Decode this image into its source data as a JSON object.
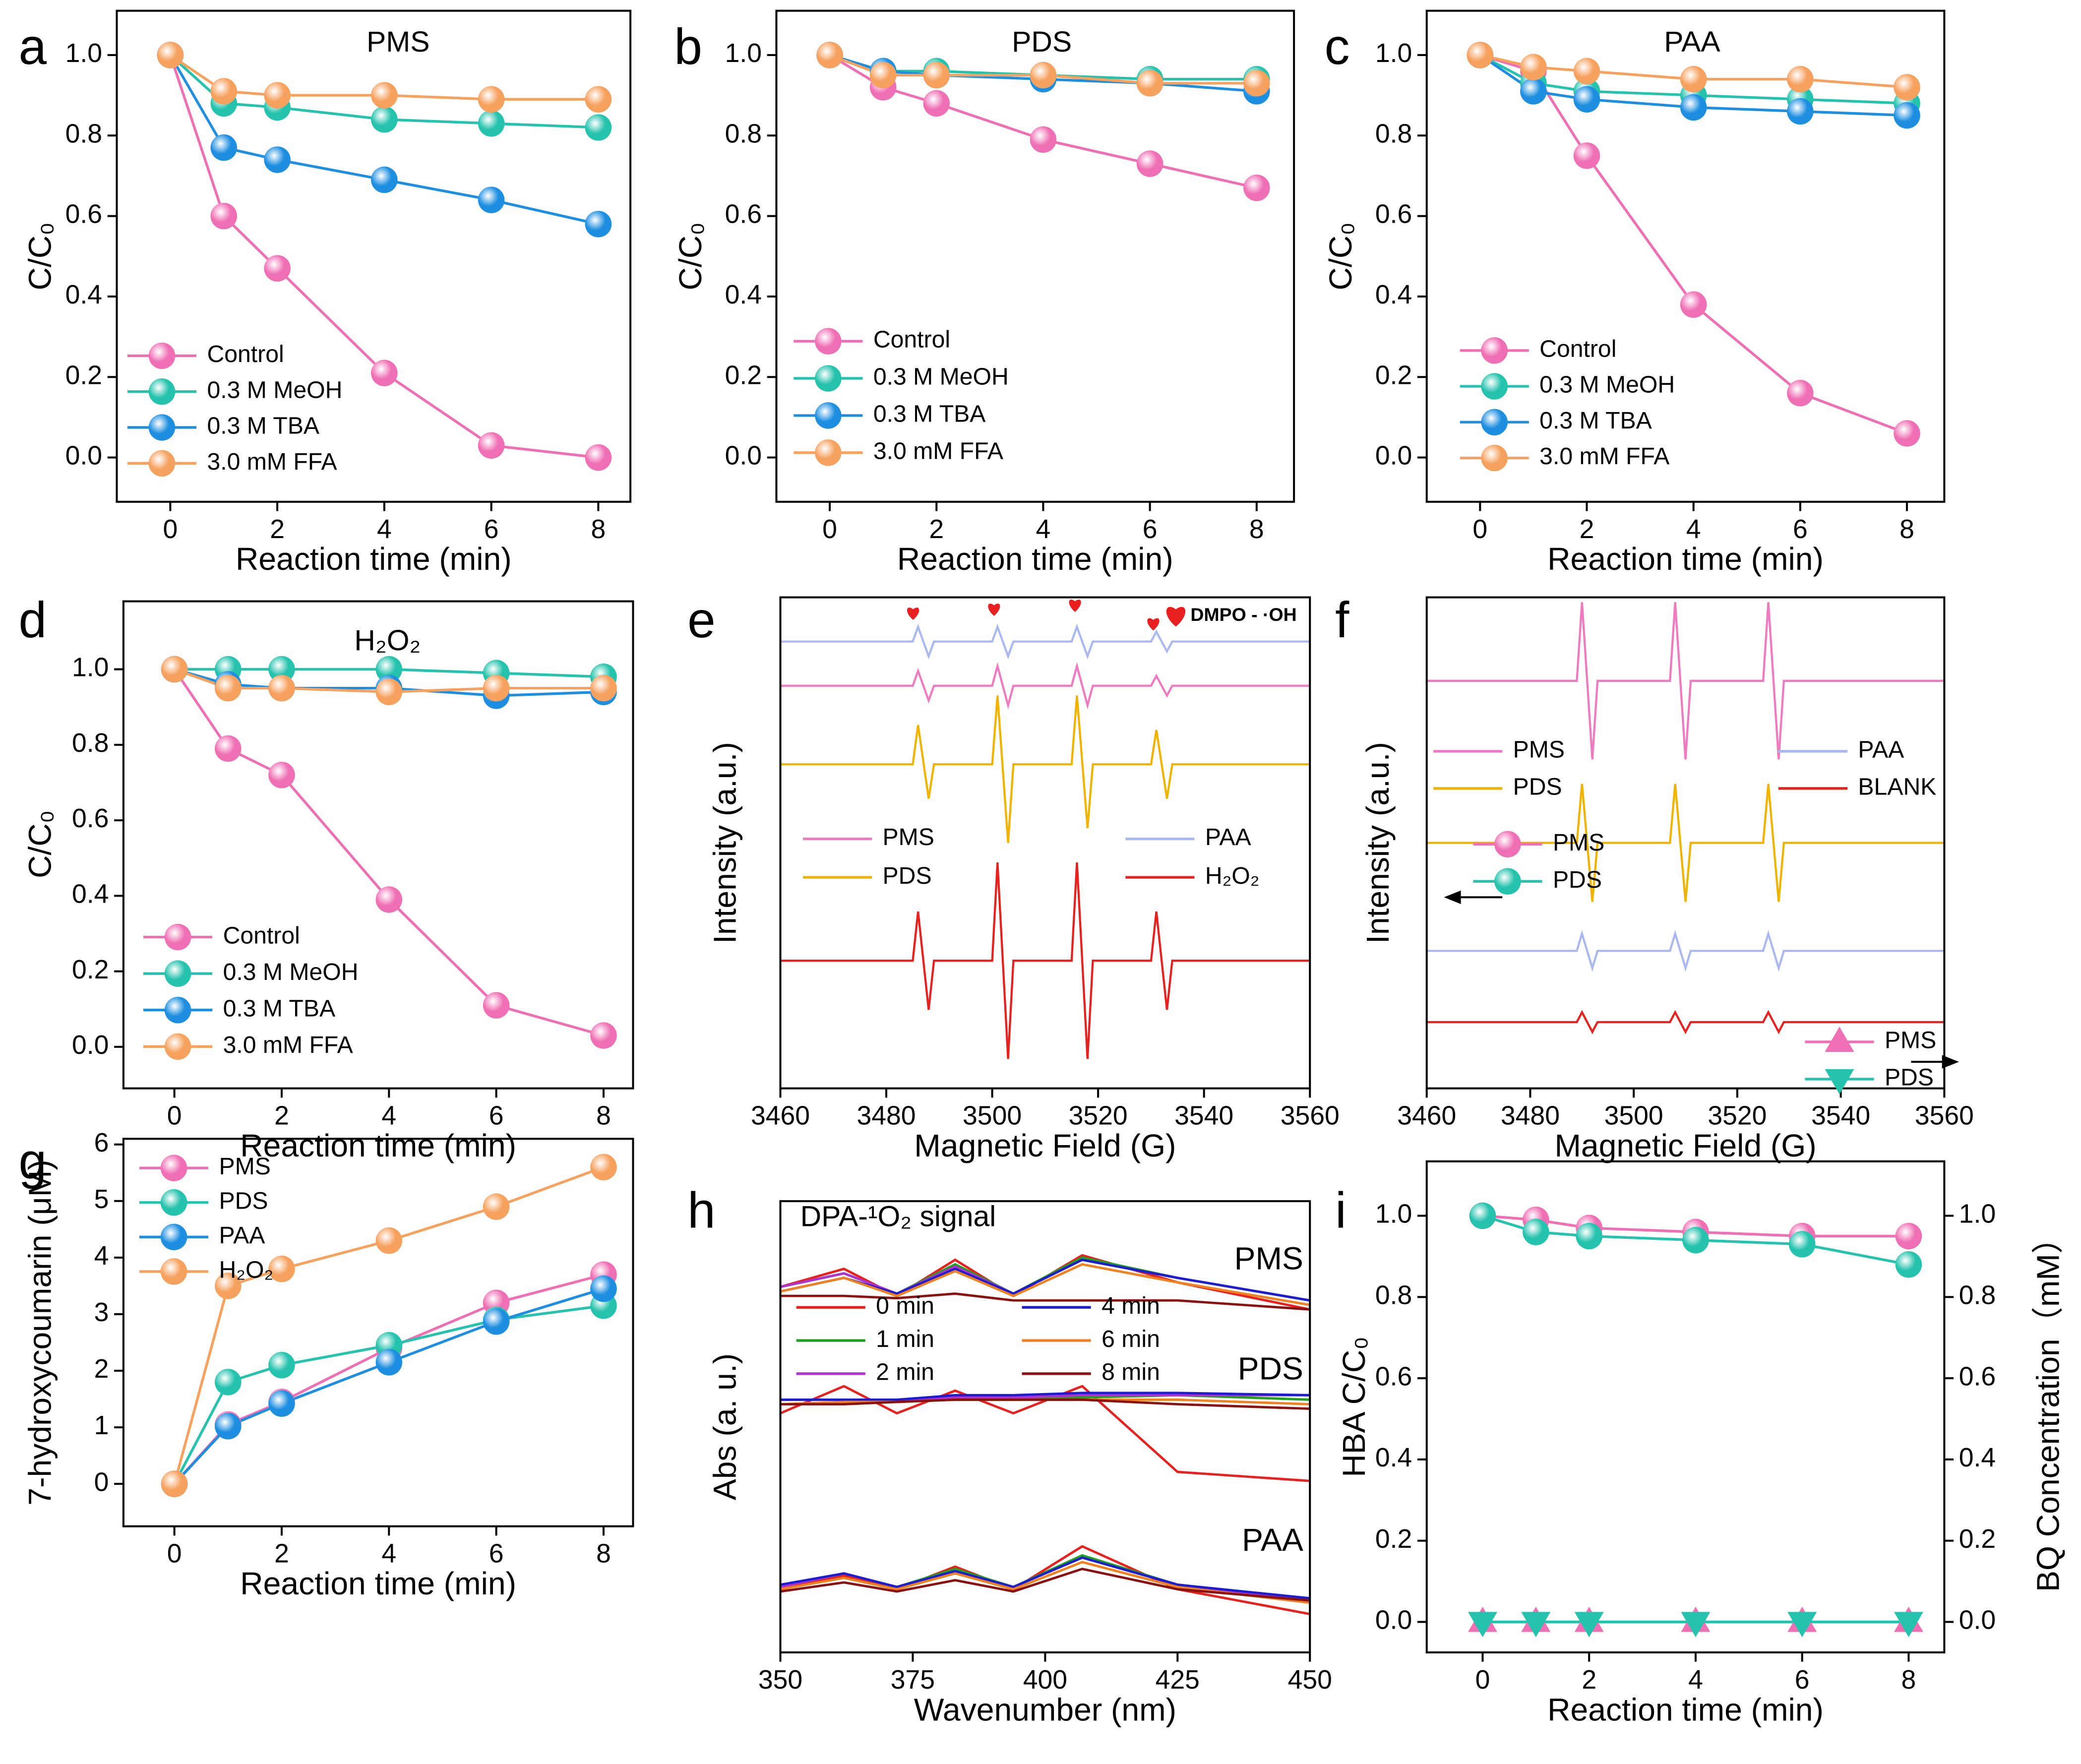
{
  "chart_data": [
    {
      "panel": "a",
      "type": "line",
      "title": "PMS",
      "x": [
        0,
        1,
        2,
        4,
        6,
        8
      ],
      "xlim": [
        -1,
        8.6
      ],
      "xticks": [
        0,
        2,
        4,
        6,
        8
      ],
      "ylim": [
        -0.11,
        1.11
      ],
      "yticks": [
        {
          "value": 0,
          "label": "0.0"
        },
        {
          "value": 0.2,
          "label": "0.2"
        },
        {
          "value": 0.4,
          "label": "0.4"
        },
        {
          "value": 0.6,
          "label": "0.6"
        },
        {
          "value": 0.8,
          "label": "0.8"
        },
        {
          "value": 1,
          "label": "1.0"
        }
      ],
      "xlabel": "Reaction time (min)",
      "ylabel": "C/C₀",
      "legend": "lower left",
      "series": [
        {
          "name": "Control",
          "color": "#ef6fb5",
          "values": [
            1,
            0.6,
            0.47,
            0.21,
            0.03,
            0.0
          ]
        },
        {
          "name": "0.3 M MeOH",
          "color": "#25c2ad",
          "values": [
            1,
            0.88,
            0.87,
            0.84,
            0.83,
            0.82
          ]
        },
        {
          "name": "0.3 M TBA",
          "color": "#1e8fe0",
          "values": [
            1,
            0.77,
            0.74,
            0.69,
            0.64,
            0.58
          ]
        },
        {
          "name": "3.0 mM FFA",
          "color": "#f6a15e",
          "values": [
            1,
            0.91,
            0.9,
            0.9,
            0.89,
            0.89
          ]
        }
      ]
    },
    {
      "panel": "b",
      "type": "line",
      "title": "PDS",
      "x": [
        0,
        1,
        2,
        4,
        6,
        8
      ],
      "xlim": [
        -1,
        8.7
      ],
      "xticks": [
        0,
        2,
        4,
        6,
        8
      ],
      "ylim": [
        -0.11,
        1.11
      ],
      "yticks": [
        {
          "value": 0,
          "label": "0.0"
        },
        {
          "value": 0.2,
          "label": "0.2"
        },
        {
          "value": 0.4,
          "label": "0.4"
        },
        {
          "value": 0.6,
          "label": "0.6"
        },
        {
          "value": 0.8,
          "label": "0.8"
        },
        {
          "value": 1,
          "label": "1.0"
        }
      ],
      "xlabel": "Reaction time (min)",
      "ylabel": "C/C₀",
      "legend": "lower left",
      "series": [
        {
          "name": "Control",
          "color": "#ef6fb5",
          "values": [
            1,
            0.92,
            0.88,
            0.79,
            0.73,
            0.67
          ]
        },
        {
          "name": "0.3 M MeOH",
          "color": "#25c2ad",
          "values": [
            1,
            0.96,
            0.96,
            0.95,
            0.94,
            0.94
          ]
        },
        {
          "name": "0.3 M TBA",
          "color": "#1e8fe0",
          "values": [
            1,
            0.96,
            0.95,
            0.94,
            0.93,
            0.91
          ]
        },
        {
          "name": "3.0 mM FFA",
          "color": "#f6a15e",
          "values": [
            1,
            0.95,
            0.95,
            0.95,
            0.93,
            0.93
          ]
        }
      ]
    },
    {
      "panel": "c",
      "type": "line",
      "title": "PAA",
      "x": [
        0,
        1,
        2,
        4,
        6,
        8
      ],
      "xlim": [
        -1,
        8.7
      ],
      "xticks": [
        0,
        2,
        4,
        6,
        8
      ],
      "ylim": [
        -0.11,
        1.11
      ],
      "yticks": [
        {
          "value": 0,
          "label": "0.0"
        },
        {
          "value": 0.2,
          "label": "0.2"
        },
        {
          "value": 0.4,
          "label": "0.4"
        },
        {
          "value": 0.6,
          "label": "0.6"
        },
        {
          "value": 0.8,
          "label": "0.8"
        },
        {
          "value": 1,
          "label": "1.0"
        }
      ],
      "xlabel": "Reaction time (min)",
      "ylabel": "C/C₀",
      "legend": "lower left",
      "series": [
        {
          "name": "Control",
          "color": "#ef6fb5",
          "values": [
            1,
            0.96,
            0.75,
            0.38,
            0.16,
            0.06
          ]
        },
        {
          "name": "0.3 M MeOH",
          "color": "#25c2ad",
          "values": [
            1,
            0.93,
            0.91,
            0.9,
            0.89,
            0.88
          ]
        },
        {
          "name": "0.3 M TBA",
          "color": "#1e8fe0",
          "values": [
            1,
            0.91,
            0.89,
            0.87,
            0.86,
            0.85
          ]
        },
        {
          "name": "3.0 mM FFA",
          "color": "#f6a15e",
          "values": [
            1,
            0.97,
            0.96,
            0.94,
            0.94,
            0.92
          ]
        }
      ]
    },
    {
      "panel": "d",
      "type": "line",
      "title": "H₂O₂",
      "x": [
        0,
        1,
        2,
        4,
        6,
        8
      ],
      "xlim": [
        -0.95,
        8.55
      ],
      "xticks": [
        0,
        2,
        4,
        6,
        8
      ],
      "ylim": [
        -0.11,
        1.18
      ],
      "yticks": [
        {
          "value": 0,
          "label": "0.0"
        },
        {
          "value": 0.2,
          "label": "0.2"
        },
        {
          "value": 0.4,
          "label": "0.4"
        },
        {
          "value": 0.6,
          "label": "0.6"
        },
        {
          "value": 0.8,
          "label": "0.8"
        },
        {
          "value": 1,
          "label": "1.0"
        }
      ],
      "xlabel": "Reaction time (min)",
      "ylabel": "C/C₀",
      "legend": "lower left",
      "series": [
        {
          "name": "Control",
          "color": "#ef6fb5",
          "values": [
            1,
            0.79,
            0.72,
            0.39,
            0.11,
            0.03
          ]
        },
        {
          "name": "0.3 M MeOH",
          "color": "#25c2ad",
          "values": [
            1,
            1.0,
            1.0,
            1.0,
            0.99,
            0.98
          ]
        },
        {
          "name": "0.3 M TBA",
          "color": "#1e8fe0",
          "values": [
            1,
            0.96,
            0.95,
            0.95,
            0.93,
            0.94
          ]
        },
        {
          "name": "3.0 mM FFA",
          "color": "#f6a15e",
          "values": [
            1,
            0.95,
            0.95,
            0.94,
            0.95,
            0.95
          ]
        }
      ]
    },
    {
      "panel": "e",
      "type": "spectrum",
      "annotation": "DMPO - ·OH",
      "x": [
        3460,
        3485,
        3486,
        3488,
        3489,
        3500,
        3501,
        3503,
        3504,
        3515,
        3516,
        3518,
        3519,
        3530,
        3531,
        3533,
        3534,
        3560
      ],
      "xlim": [
        3460,
        3560
      ],
      "xticks": [
        3460,
        3480,
        3500,
        3520,
        3540,
        3560
      ],
      "ylim": [
        0,
        10
      ],
      "xlabel": "Magnetic Field (G)",
      "ylabel": "Intensity (a.u.)",
      "legend": "center",
      "series": [
        {
          "name": "PMS",
          "color": "#f07ac0",
          "values": [
            8.2,
            8.2,
            8.5,
            7.9,
            8.2,
            8.2,
            8.6,
            7.8,
            8.2,
            8.2,
            8.6,
            7.8,
            8.2,
            8.2,
            8.4,
            8.0,
            8.2,
            8.2
          ]
        },
        {
          "name": "PDS",
          "color": "#f0b400",
          "values": [
            6.6,
            6.6,
            7.4,
            5.9,
            6.6,
            6.6,
            8.0,
            5.0,
            6.6,
            6.6,
            8.0,
            5.3,
            6.6,
            6.6,
            7.3,
            5.9,
            6.6,
            6.6
          ]
        },
        {
          "name": "PAA",
          "color": "#a9b8f0",
          "values": [
            9.1,
            9.1,
            9.4,
            8.8,
            9.1,
            9.1,
            9.4,
            8.8,
            9.1,
            9.1,
            9.4,
            8.8,
            9.1,
            9.1,
            9.3,
            8.9,
            9.1,
            9.1
          ]
        },
        {
          "name": "H₂O₂",
          "color": "#e8201e",
          "values": [
            2.6,
            2.6,
            3.6,
            1.6,
            2.6,
            2.6,
            4.6,
            0.6,
            2.6,
            2.6,
            4.6,
            0.6,
            2.6,
            2.6,
            3.6,
            1.6,
            2.6,
            2.6
          ]
        }
      ]
    },
    {
      "panel": "f",
      "type": "spectrum",
      "x": [
        3460,
        3489,
        3490,
        3492,
        3493,
        3507,
        3508,
        3510,
        3511,
        3525,
        3526,
        3528,
        3529,
        3560
      ],
      "xlim": [
        3460,
        3560
      ],
      "xticks": [
        3460,
        3480,
        3500,
        3520,
        3540,
        3560
      ],
      "ylim": [
        0,
        10
      ],
      "xlabel": "Magnetic Field (G)",
      "ylabel": "Intensity (a.u.)",
      "legend": "center",
      "series": [
        {
          "name": "PMS",
          "color": "#f07ac0",
          "values": [
            8.3,
            8.3,
            9.9,
            6.7,
            8.3,
            8.3,
            9.9,
            6.7,
            8.3,
            8.3,
            9.9,
            6.7,
            8.3,
            8.3
          ]
        },
        {
          "name": "PDS",
          "color": "#f0b400",
          "values": [
            5.0,
            5.0,
            6.2,
            3.8,
            5.0,
            5.0,
            6.2,
            3.8,
            5.0,
            5.0,
            6.2,
            3.8,
            5.0,
            5.0
          ]
        },
        {
          "name": "PAA",
          "color": "#a9b8f0",
          "values": [
            2.8,
            2.8,
            3.15,
            2.45,
            2.8,
            2.8,
            3.15,
            2.45,
            2.8,
            2.8,
            3.15,
            2.45,
            2.8,
            2.8
          ]
        },
        {
          "name": "BLANK",
          "color": "#e8201e",
          "values": [
            1.35,
            1.35,
            1.55,
            1.15,
            1.35,
            1.35,
            1.55,
            1.15,
            1.35,
            1.35,
            1.55,
            1.15,
            1.35,
            1.35
          ]
        }
      ]
    },
    {
      "panel": "g",
      "type": "line",
      "x": [
        0,
        1,
        2,
        4,
        6,
        8
      ],
      "xlim": [
        -0.95,
        8.55
      ],
      "xticks": [
        0,
        2,
        4,
        6,
        8
      ],
      "ylim": [
        -0.75,
        6.1
      ],
      "yticks": [
        0,
        1,
        2,
        3,
        4,
        5,
        6
      ],
      "xlabel": "Reaction time (min)",
      "ylabel": "7-hydroxycoumarin (μM)",
      "legend": "upper left",
      "series": [
        {
          "name": "PMS",
          "color": "#ef6fb5",
          "values": [
            0,
            1.05,
            1.45,
            2.4,
            3.2,
            3.7
          ]
        },
        {
          "name": "PDS",
          "color": "#25c2ad",
          "values": [
            0,
            1.8,
            2.1,
            2.45,
            2.9,
            3.15
          ]
        },
        {
          "name": "PAA",
          "color": "#1e8fe0",
          "values": [
            0,
            1.02,
            1.42,
            2.15,
            2.87,
            3.45
          ]
        },
        {
          "name": "H₂O₂",
          "color": "#f6a15e",
          "values": [
            0,
            3.5,
            3.8,
            4.3,
            4.9,
            5.6
          ]
        }
      ]
    },
    {
      "panel": "h",
      "type": "spectrum",
      "title": "DPA-¹O₂ signal",
      "groups": [
        "PMS",
        "PDS",
        "PAA"
      ],
      "x": [
        350,
        362,
        372,
        383,
        394,
        407,
        425,
        450
      ],
      "xlim": [
        350,
        450
      ],
      "xticks": [
        350,
        375,
        400,
        425,
        450
      ],
      "ylim": [
        0,
        10
      ],
      "xlabel": "Wavenumber (nm)",
      "ylabel": "Abs (a. u.)",
      "legend": "center",
      "series": [
        {
          "name": "0 min",
          "color": "#e8201e",
          "values": [
            [
              8.1,
              8.5,
              7.9,
              8.7,
              7.9,
              8.8,
              8.2,
              7.6
            ],
            [
              5.3,
              5.9,
              5.3,
              5.8,
              5.3,
              5.9,
              4.0,
              3.8
            ],
            [
              1.4,
              1.7,
              1.4,
              1.9,
              1.4,
              2.35,
              1.4,
              0.85
            ]
          ]
        },
        {
          "name": "1 min",
          "color": "#20a020",
          "values": [
            [
              8.1,
              8.4,
              7.95,
              8.6,
              7.95,
              8.75,
              8.3,
              7.8
            ],
            [
              5.5,
              5.5,
              5.55,
              5.6,
              5.6,
              5.65,
              5.7,
              5.6
            ],
            [
              1.45,
              1.75,
              1.45,
              1.85,
              1.45,
              2.15,
              1.5,
              1.15
            ]
          ]
        },
        {
          "name": "2 min",
          "color": "#b030d0",
          "values": [
            [
              8.1,
              8.4,
              7.95,
              8.55,
              7.95,
              8.7,
              8.3,
              7.8
            ],
            [
              5.6,
              5.6,
              5.6,
              5.65,
              5.65,
              5.7,
              5.7,
              5.7
            ],
            [
              1.45,
              1.75,
              1.45,
              1.8,
              1.45,
              2.1,
              1.5,
              1.15
            ]
          ]
        },
        {
          "name": "4 min",
          "color": "#1c1cd0",
          "values": [
            [
              8.0,
              8.3,
              7.95,
              8.5,
              7.95,
              8.7,
              8.3,
              7.8
            ],
            [
              5.6,
              5.6,
              5.6,
              5.7,
              5.7,
              5.75,
              5.75,
              5.7
            ],
            [
              1.5,
              1.75,
              1.45,
              1.8,
              1.45,
              2.1,
              1.5,
              1.2
            ]
          ]
        },
        {
          "name": "6 min",
          "color": "#f08020",
          "values": [
            [
              8.0,
              8.3,
              7.9,
              8.45,
              7.9,
              8.6,
              8.2,
              7.7
            ],
            [
              5.5,
              5.55,
              5.55,
              5.6,
              5.6,
              5.6,
              5.6,
              5.5
            ],
            [
              1.4,
              1.65,
              1.4,
              1.75,
              1.4,
              2.0,
              1.45,
              1.1
            ]
          ]
        },
        {
          "name": "8 min",
          "color": "#8b1010",
          "values": [
            [
              7.9,
              7.9,
              7.85,
              7.95,
              7.8,
              7.8,
              7.8,
              7.6
            ],
            [
              5.5,
              5.5,
              5.55,
              5.6,
              5.6,
              5.6,
              5.5,
              5.4
            ],
            [
              1.35,
              1.55,
              1.35,
              1.6,
              1.35,
              1.85,
              1.4,
              1.15
            ]
          ]
        }
      ]
    },
    {
      "panel": "i",
      "type": "line",
      "x": [
        0,
        1,
        2,
        4,
        6,
        8
      ],
      "xlim": [
        -1.05,
        8.67
      ],
      "xticks": [
        0,
        2,
        4,
        6,
        8
      ],
      "ylim": [
        -0.075,
        1.134
      ],
      "y2lim": [
        -0.075,
        1.134
      ],
      "yticks": [
        {
          "value": 0,
          "label": "0.0"
        },
        {
          "value": 0.2,
          "label": "0.2"
        },
        {
          "value": 0.4,
          "label": "0.4"
        },
        {
          "value": 0.6,
          "label": "0.6"
        },
        {
          "value": 0.8,
          "label": "0.8"
        },
        {
          "value": 1,
          "label": "1.0"
        }
      ],
      "y2ticks": [
        {
          "value": 0,
          "label": "0.0"
        },
        {
          "value": 0.2,
          "label": "0.2"
        },
        {
          "value": 0.4,
          "label": "0.4"
        },
        {
          "value": 0.6,
          "label": "0.6"
        },
        {
          "value": 0.8,
          "label": "0.8"
        },
        {
          "value": 1,
          "label": "1.0"
        }
      ],
      "xlabel": "Reaction time (min)",
      "ylabel": "HBA C/C₀",
      "y2label": "BQ Concentration（mM）",
      "legend": "center left",
      "legend2": "lower right",
      "series": [
        {
          "name": "PMS",
          "color": "#ef6fb5",
          "marker": "circle",
          "values": [
            1,
            0.99,
            0.97,
            0.96,
            0.95,
            0.95
          ]
        },
        {
          "name": "PDS",
          "color": "#25c2ad",
          "marker": "circle",
          "values": [
            1,
            0.96,
            0.95,
            0.94,
            0.93,
            0.88
          ]
        },
        {
          "name": "PMS",
          "color": "#ef6fb5",
          "marker": "triangle-up",
          "axis": "y2",
          "values": [
            0,
            0,
            0,
            0,
            0,
            0
          ]
        },
        {
          "name": "PDS",
          "color": "#25c2ad",
          "marker": "triangle-down",
          "axis": "y2",
          "values": [
            0,
            0,
            0,
            0,
            0,
            0
          ]
        }
      ]
    }
  ]
}
